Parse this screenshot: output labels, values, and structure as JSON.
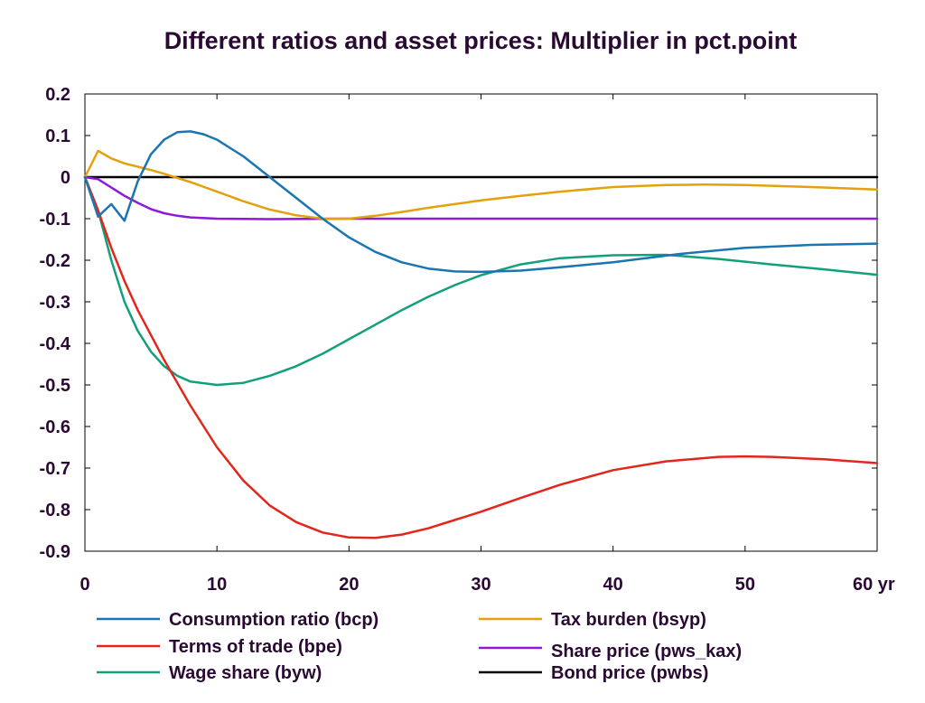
{
  "chart_data": {
    "type": "line",
    "title": "Different ratios and asset prices: Multiplier in pct.point",
    "xlabel": "",
    "ylabel": "",
    "x_unit_suffix": "yr",
    "xlim": [
      0,
      60
    ],
    "ylim": [
      -0.9,
      0.2
    ],
    "x_ticks": [
      0,
      10,
      20,
      30,
      40,
      50,
      60
    ],
    "x_tick_labels": [
      "0",
      "10",
      "20",
      "30",
      "40",
      "50",
      "60 yr"
    ],
    "y_ticks": [
      0.2,
      0.1,
      0,
      -0.1,
      -0.2,
      -0.3,
      -0.4,
      -0.5,
      -0.6,
      -0.7,
      -0.8,
      -0.9
    ],
    "y_tick_labels": [
      "0.2",
      "0.1",
      "0",
      "-0.1",
      "-0.2",
      "-0.3",
      "-0.4",
      "-0.5",
      "-0.6",
      "-0.7",
      "-0.8",
      "-0.9"
    ],
    "grid": false,
    "legend_position": "bottom",
    "series": [
      {
        "name": "Consumption ratio (bcp)",
        "color": "#1a75b0",
        "points": [
          [
            0,
            0
          ],
          [
            1,
            -0.095
          ],
          [
            2,
            -0.065
          ],
          [
            3,
            -0.105
          ],
          [
            4,
            -0.01
          ],
          [
            5,
            0.055
          ],
          [
            6,
            0.09
          ],
          [
            7,
            0.108
          ],
          [
            8,
            0.11
          ],
          [
            9,
            0.103
          ],
          [
            10,
            0.09
          ],
          [
            12,
            0.05
          ],
          [
            14,
            0.0
          ],
          [
            16,
            -0.05
          ],
          [
            18,
            -0.1
          ],
          [
            20,
            -0.145
          ],
          [
            22,
            -0.18
          ],
          [
            24,
            -0.205
          ],
          [
            26,
            -0.22
          ],
          [
            28,
            -0.227
          ],
          [
            30,
            -0.228
          ],
          [
            33,
            -0.225
          ],
          [
            36,
            -0.217
          ],
          [
            40,
            -0.205
          ],
          [
            45,
            -0.185
          ],
          [
            50,
            -0.17
          ],
          [
            55,
            -0.163
          ],
          [
            60,
            -0.16
          ]
        ]
      },
      {
        "name": "Terms of trade (bpe)",
        "color": "#e2261c",
        "points": [
          [
            0,
            0
          ],
          [
            1,
            -0.08
          ],
          [
            2,
            -0.17
          ],
          [
            3,
            -0.25
          ],
          [
            4,
            -0.32
          ],
          [
            5,
            -0.38
          ],
          [
            6,
            -0.44
          ],
          [
            8,
            -0.55
          ],
          [
            10,
            -0.65
          ],
          [
            12,
            -0.73
          ],
          [
            14,
            -0.79
          ],
          [
            16,
            -0.83
          ],
          [
            18,
            -0.855
          ],
          [
            20,
            -0.867
          ],
          [
            22,
            -0.868
          ],
          [
            24,
            -0.86
          ],
          [
            26,
            -0.845
          ],
          [
            28,
            -0.825
          ],
          [
            30,
            -0.805
          ],
          [
            33,
            -0.772
          ],
          [
            36,
            -0.74
          ],
          [
            40,
            -0.705
          ],
          [
            44,
            -0.684
          ],
          [
            48,
            -0.673
          ],
          [
            50,
            -0.672
          ],
          [
            52,
            -0.673
          ],
          [
            56,
            -0.679
          ],
          [
            60,
            -0.688
          ]
        ]
      },
      {
        "name": "Wage share (byw)",
        "color": "#12a07a",
        "points": [
          [
            0,
            0
          ],
          [
            1,
            -0.08
          ],
          [
            2,
            -0.2
          ],
          [
            3,
            -0.3
          ],
          [
            4,
            -0.37
          ],
          [
            5,
            -0.42
          ],
          [
            6,
            -0.455
          ],
          [
            7,
            -0.478
          ],
          [
            8,
            -0.492
          ],
          [
            10,
            -0.5
          ],
          [
            12,
            -0.495
          ],
          [
            14,
            -0.478
          ],
          [
            16,
            -0.455
          ],
          [
            18,
            -0.425
          ],
          [
            20,
            -0.39
          ],
          [
            22,
            -0.355
          ],
          [
            24,
            -0.32
          ],
          [
            26,
            -0.288
          ],
          [
            28,
            -0.26
          ],
          [
            30,
            -0.236
          ],
          [
            33,
            -0.21
          ],
          [
            36,
            -0.195
          ],
          [
            40,
            -0.188
          ],
          [
            44,
            -0.187
          ],
          [
            48,
            -0.197
          ],
          [
            52,
            -0.21
          ],
          [
            56,
            -0.222
          ],
          [
            60,
            -0.235
          ]
        ]
      },
      {
        "name": "Tax burden (bsyp)",
        "color": "#e4a10e",
        "points": [
          [
            0,
            0
          ],
          [
            1,
            0.063
          ],
          [
            2,
            0.045
          ],
          [
            3,
            0.033
          ],
          [
            4,
            0.025
          ],
          [
            5,
            0.017
          ],
          [
            6,
            0.008
          ],
          [
            7,
            -0.002
          ],
          [
            8,
            -0.012
          ],
          [
            10,
            -0.035
          ],
          [
            12,
            -0.058
          ],
          [
            14,
            -0.078
          ],
          [
            16,
            -0.092
          ],
          [
            18,
            -0.1
          ],
          [
            20,
            -0.1
          ],
          [
            22,
            -0.093
          ],
          [
            24,
            -0.084
          ],
          [
            26,
            -0.074
          ],
          [
            28,
            -0.065
          ],
          [
            30,
            -0.056
          ],
          [
            33,
            -0.045
          ],
          [
            36,
            -0.035
          ],
          [
            40,
            -0.024
          ],
          [
            44,
            -0.019
          ],
          [
            47,
            -0.018
          ],
          [
            50,
            -0.019
          ],
          [
            55,
            -0.024
          ],
          [
            60,
            -0.03
          ]
        ]
      },
      {
        "name": "Share price (pws_kax)",
        "color": "#8e1ad6",
        "points": [
          [
            0,
            0
          ],
          [
            1,
            -0.005
          ],
          [
            2,
            -0.025
          ],
          [
            3,
            -0.045
          ],
          [
            4,
            -0.062
          ],
          [
            5,
            -0.077
          ],
          [
            6,
            -0.087
          ],
          [
            7,
            -0.093
          ],
          [
            8,
            -0.097
          ],
          [
            10,
            -0.1
          ],
          [
            14,
            -0.101
          ],
          [
            20,
            -0.1
          ],
          [
            30,
            -0.1
          ],
          [
            40,
            -0.1
          ],
          [
            50,
            -0.1
          ],
          [
            60,
            -0.1
          ]
        ]
      },
      {
        "name": "Bond price (pwbs)",
        "color": "#000000",
        "points": [
          [
            0,
            0
          ],
          [
            60,
            0
          ]
        ]
      }
    ]
  }
}
